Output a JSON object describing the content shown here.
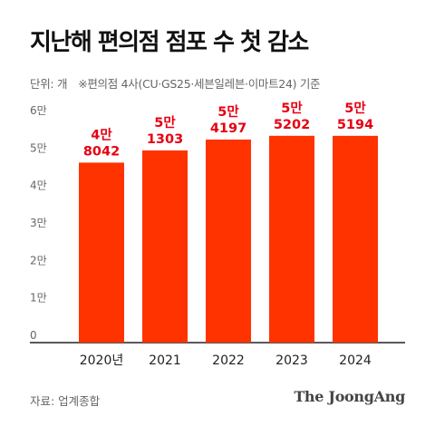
{
  "chart_data": {
    "type": "bar",
    "title": "지난해 편의점 점포 수 첫 감소",
    "unit_label": "단위: 개",
    "note": "※편의점 4사(CU·GS25·세븐일레븐·이마트24) 기준",
    "categories": [
      "2020년",
      "2021",
      "2022",
      "2023",
      "2024"
    ],
    "values": [
      48042,
      51303,
      54197,
      55202,
      55194
    ],
    "label_top": [
      "4만",
      "5만",
      "5만",
      "5만",
      "5만"
    ],
    "label_bottom": [
      "8042",
      "1303",
      "4197",
      "5202",
      "5194"
    ],
    "y_ticks": [
      0,
      10000,
      20000,
      30000,
      40000,
      50000,
      60000
    ],
    "y_tick_labels": [
      "0",
      "1만",
      "2만",
      "3만",
      "4만",
      "5만",
      "6만"
    ],
    "ylim": [
      0,
      60000
    ],
    "grid": false,
    "bar_color": "#ff3300",
    "label_color": "#e60012"
  },
  "footer": {
    "source": "자료: 업계종합",
    "brand": "The JoongAng"
  }
}
